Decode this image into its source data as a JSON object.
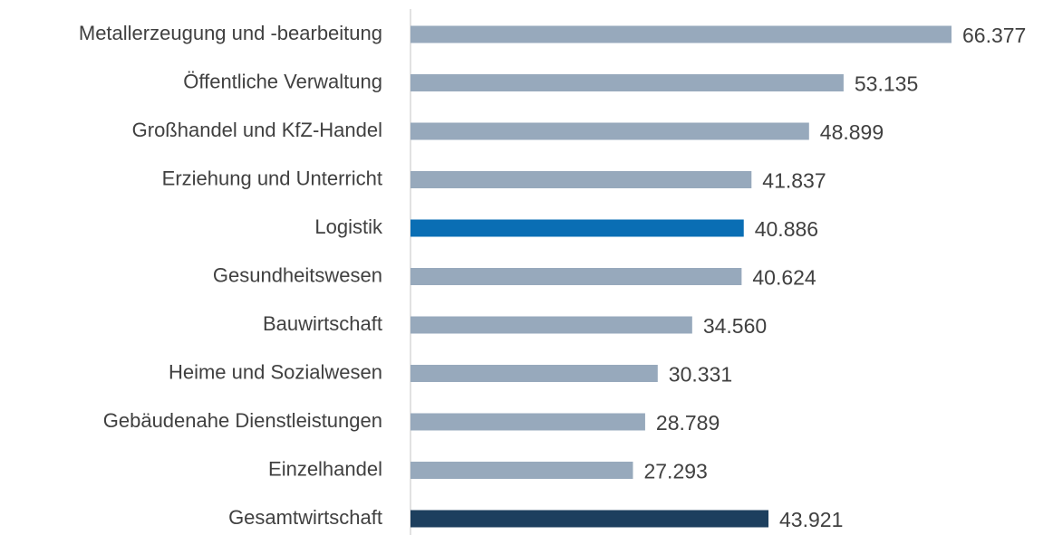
{
  "chart_data": {
    "type": "bar",
    "orientation": "horizontal",
    "categories": [
      "Metallerzeugung und -bearbeitung",
      "Öffentliche Verwaltung",
      "Großhandel und KfZ-Handel",
      "Erziehung und Unterricht",
      "Logistik",
      "Gesundheitswesen",
      "Bauwirtschaft",
      "Heime und Sozialwesen",
      "Gebäudenahe Dienstleistungen",
      "Einzelhandel",
      "Gesamtwirtschaft"
    ],
    "values": [
      66377,
      53135,
      48899,
      41837,
      40886,
      40624,
      34560,
      30331,
      28789,
      27293,
      43921
    ],
    "value_labels": [
      "66.377",
      "53.135",
      "48.899",
      "41.837",
      "40.886",
      "40.624",
      "34.560",
      "30.331",
      "28.789",
      "27.293",
      "43.921"
    ],
    "colors": [
      "#97a9bc",
      "#97a9bc",
      "#97a9bc",
      "#97a9bc",
      "#0a6eb4",
      "#97a9bc",
      "#97a9bc",
      "#97a9bc",
      "#97a9bc",
      "#97a9bc",
      "#1d3f5e"
    ]
  }
}
